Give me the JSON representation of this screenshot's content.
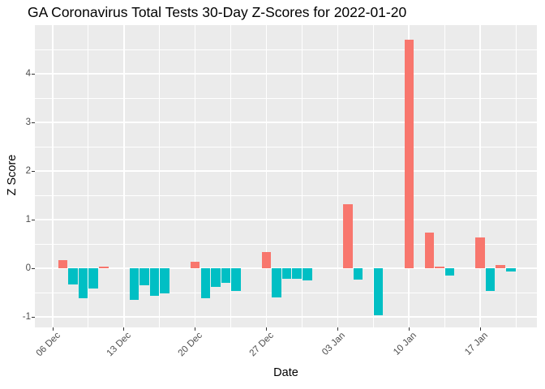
{
  "chart_data": {
    "type": "bar",
    "title": "GA Coronavirus Total Tests 30-Day Z-Scores for 2022-01-20",
    "xlabel": "Date",
    "ylabel": "Z Score",
    "ylim": [
      -1.22,
      5.0
    ],
    "grid": true,
    "legend": "none",
    "y_ticks": [
      -1,
      0,
      1,
      2,
      3,
      4
    ],
    "x_ticks": [
      {
        "day": 0,
        "label": "06 Dec"
      },
      {
        "day": 7,
        "label": "13 Dec"
      },
      {
        "day": 14,
        "label": "20 Dec"
      },
      {
        "day": 21,
        "label": "27 Dec"
      },
      {
        "day": 28,
        "label": "03 Jan"
      },
      {
        "day": 35,
        "label": "10 Jan"
      },
      {
        "day": 42,
        "label": "17 Jan"
      }
    ],
    "colors": {
      "positive": "#F8766D",
      "negative": "#00BFC4",
      "panel_bg": "#EBEBEB",
      "grid": "#FFFFFF",
      "tick_text": "#4D4D4D",
      "axis_text": "#000000",
      "tick_mark": "#333333"
    },
    "points": [
      {
        "day": 1,
        "label": "07 Dec",
        "value": 0.16
      },
      {
        "day": 2,
        "label": "08 Dec",
        "value": -0.33
      },
      {
        "day": 3,
        "label": "09 Dec",
        "value": -0.62
      },
      {
        "day": 4,
        "label": "10 Dec",
        "value": -0.42
      },
      {
        "day": 5,
        "label": "11 Dec",
        "value": 0.03
      },
      {
        "day": 8,
        "label": "14 Dec",
        "value": -0.65
      },
      {
        "day": 9,
        "label": "15 Dec",
        "value": -0.35
      },
      {
        "day": 10,
        "label": "16 Dec",
        "value": -0.57
      },
      {
        "day": 11,
        "label": "17 Dec",
        "value": -0.52
      },
      {
        "day": 14,
        "label": "20 Dec",
        "value": 0.14
      },
      {
        "day": 15,
        "label": "21 Dec",
        "value": -0.62
      },
      {
        "day": 16,
        "label": "22 Dec",
        "value": -0.39
      },
      {
        "day": 17,
        "label": "23 Dec",
        "value": -0.3
      },
      {
        "day": 18,
        "label": "24 Dec",
        "value": -0.47
      },
      {
        "day": 21,
        "label": "27 Dec",
        "value": 0.34
      },
      {
        "day": 22,
        "label": "28 Dec",
        "value": -0.6
      },
      {
        "day": 23,
        "label": "29 Dec",
        "value": -0.22
      },
      {
        "day": 24,
        "label": "30 Dec",
        "value": -0.21
      },
      {
        "day": 25,
        "label": "31 Dec",
        "value": -0.25
      },
      {
        "day": 29,
        "label": "04 Jan",
        "value": 1.32
      },
      {
        "day": 30,
        "label": "05 Jan",
        "value": -0.24
      },
      {
        "day": 32,
        "label": "07 Jan",
        "value": -0.97
      },
      {
        "day": 35,
        "label": "10 Jan",
        "value": 4.7
      },
      {
        "day": 37,
        "label": "12 Jan",
        "value": 0.74
      },
      {
        "day": 38,
        "label": "13 Jan",
        "value": 0.04
      },
      {
        "day": 39,
        "label": "14 Jan",
        "value": -0.15
      },
      {
        "day": 42,
        "label": "17 Jan",
        "value": 0.63
      },
      {
        "day": 43,
        "label": "18 Jan",
        "value": -0.46
      },
      {
        "day": 44,
        "label": "19 Jan",
        "value": 0.07
      },
      {
        "day": 45,
        "label": "20 Jan",
        "value": -0.07
      }
    ]
  }
}
